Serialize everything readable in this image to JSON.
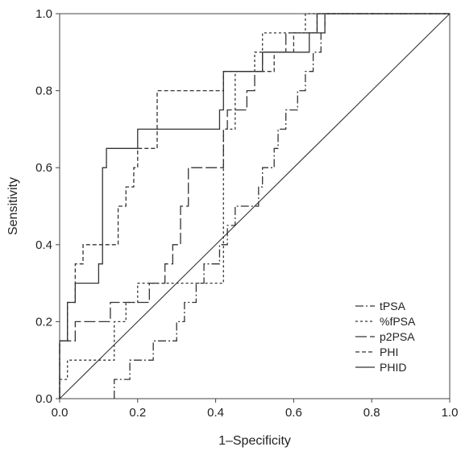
{
  "chart_data": {
    "type": "line",
    "xlabel": "1–Specificity",
    "ylabel": "Sensitivity",
    "xlim": [
      0,
      1
    ],
    "ylim": [
      0,
      1
    ],
    "xticks": [
      "0.0",
      "0.2",
      "0.4",
      "0.6",
      "0.8",
      "1.0"
    ],
    "yticks": [
      "0.0",
      "0.2",
      "0.4",
      "0.6",
      "0.8",
      "1.0"
    ],
    "legend_position": "bottom-right",
    "grid": false,
    "reference_line": {
      "x": [
        0,
        1
      ],
      "y": [
        0,
        1
      ]
    },
    "series": [
      {
        "name": "tPSA",
        "dash": "10 3 2 3",
        "x": [
          0.14,
          0.14,
          0.18,
          0.18,
          0.24,
          0.24,
          0.3,
          0.3,
          0.32,
          0.32,
          0.35,
          0.35,
          0.37,
          0.37,
          0.37,
          0.41,
          0.41,
          0.43,
          0.43,
          0.45,
          0.45,
          0.51,
          0.51,
          0.52,
          0.52,
          0.55,
          0.55,
          0.56,
          0.56,
          0.58,
          0.58,
          0.61,
          0.61,
          0.63,
          0.63,
          0.65,
          0.65,
          0.67,
          0.67,
          0.68,
          0.68,
          0.72,
          0.72,
          0.86,
          0.86,
          0.91,
          0.91,
          1.0
        ],
        "y": [
          0.0,
          0.05,
          0.05,
          0.1,
          0.1,
          0.15,
          0.15,
          0.2,
          0.2,
          0.25,
          0.25,
          0.3,
          0.3,
          0.3,
          0.35,
          0.35,
          0.4,
          0.4,
          0.45,
          0.45,
          0.5,
          0.5,
          0.55,
          0.55,
          0.6,
          0.6,
          0.65,
          0.65,
          0.7,
          0.7,
          0.75,
          0.75,
          0.8,
          0.8,
          0.85,
          0.85,
          0.9,
          0.9,
          0.95,
          0.95,
          1.0,
          1.0,
          1.0,
          1.0,
          1.0,
          1.0,
          1.0,
          1.0
        ]
      },
      {
        "name": "%fPSA",
        "dash": "3 3",
        "x": [
          0.0,
          0.0,
          0.02,
          0.02,
          0.14,
          0.14,
          0.17,
          0.17,
          0.2,
          0.2,
          0.3,
          0.3,
          0.35,
          0.35,
          0.42,
          0.42,
          0.45,
          0.45,
          0.5,
          0.5,
          0.52,
          0.52,
          0.6,
          0.6,
          0.63,
          0.63,
          0.66,
          0.66,
          0.72,
          0.72,
          1.0
        ],
        "y": [
          0.0,
          0.05,
          0.05,
          0.1,
          0.1,
          0.2,
          0.2,
          0.25,
          0.25,
          0.3,
          0.3,
          0.3,
          0.3,
          0.3,
          0.3,
          0.7,
          0.7,
          0.85,
          0.85,
          0.9,
          0.9,
          0.95,
          0.95,
          0.95,
          0.95,
          1.0,
          1.0,
          1.0,
          1.0,
          1.0,
          1.0
        ]
      },
      {
        "name": "p2PSA",
        "dash": "14 4",
        "x": [
          0.0,
          0.0,
          0.04,
          0.04,
          0.07,
          0.07,
          0.13,
          0.13,
          0.23,
          0.23,
          0.27,
          0.27,
          0.29,
          0.29,
          0.31,
          0.31,
          0.33,
          0.33,
          0.38,
          0.38,
          0.42,
          0.42,
          0.43,
          0.43,
          0.48,
          0.48,
          0.5,
          0.5,
          0.52,
          0.52,
          0.55,
          0.55,
          0.58,
          0.58,
          0.64,
          0.64,
          0.68,
          0.68,
          0.92,
          0.92,
          1.0
        ],
        "y": [
          0.0,
          0.15,
          0.15,
          0.2,
          0.2,
          0.2,
          0.2,
          0.25,
          0.25,
          0.3,
          0.3,
          0.35,
          0.35,
          0.4,
          0.4,
          0.5,
          0.5,
          0.6,
          0.6,
          0.6,
          0.6,
          0.7,
          0.7,
          0.75,
          0.75,
          0.8,
          0.8,
          0.85,
          0.85,
          0.9,
          0.9,
          0.9,
          0.9,
          0.95,
          0.95,
          0.95,
          0.95,
          1.0,
          1.0,
          1.0,
          1.0
        ]
      },
      {
        "name": "PHI",
        "dash": "5 3",
        "x": [
          0.0,
          0.0,
          0.02,
          0.02,
          0.04,
          0.04,
          0.06,
          0.06,
          0.07,
          0.07,
          0.15,
          0.15,
          0.17,
          0.17,
          0.19,
          0.19,
          0.2,
          0.2,
          0.23,
          0.23,
          0.25,
          0.25,
          0.27,
          0.27,
          0.42,
          0.42,
          0.44,
          0.44,
          0.5,
          0.5,
          0.55,
          0.55,
          0.6,
          0.6,
          0.66,
          0.66,
          0.68,
          0.68,
          1.0
        ],
        "y": [
          0.0,
          0.15,
          0.15,
          0.25,
          0.25,
          0.35,
          0.35,
          0.4,
          0.4,
          0.4,
          0.4,
          0.5,
          0.5,
          0.55,
          0.55,
          0.6,
          0.6,
          0.65,
          0.65,
          0.65,
          0.65,
          0.8,
          0.8,
          0.8,
          0.8,
          0.85,
          0.85,
          0.85,
          0.85,
          0.85,
          0.85,
          0.9,
          0.9,
          0.95,
          0.95,
          1.0,
          1.0,
          1.0,
          1.0
        ]
      },
      {
        "name": "PHID",
        "dash": "",
        "x": [
          0.0,
          0.0,
          0.02,
          0.02,
          0.04,
          0.04,
          0.1,
          0.1,
          0.11,
          0.11,
          0.12,
          0.12,
          0.2,
          0.2,
          0.41,
          0.41,
          0.42,
          0.42,
          0.52,
          0.52,
          0.64,
          0.64,
          0.66,
          0.66,
          1.0
        ],
        "y": [
          0.0,
          0.15,
          0.15,
          0.25,
          0.25,
          0.3,
          0.3,
          0.35,
          0.35,
          0.6,
          0.6,
          0.65,
          0.65,
          0.7,
          0.7,
          0.75,
          0.75,
          0.85,
          0.85,
          0.9,
          0.9,
          0.95,
          0.95,
          1.0,
          1.0
        ]
      }
    ]
  }
}
